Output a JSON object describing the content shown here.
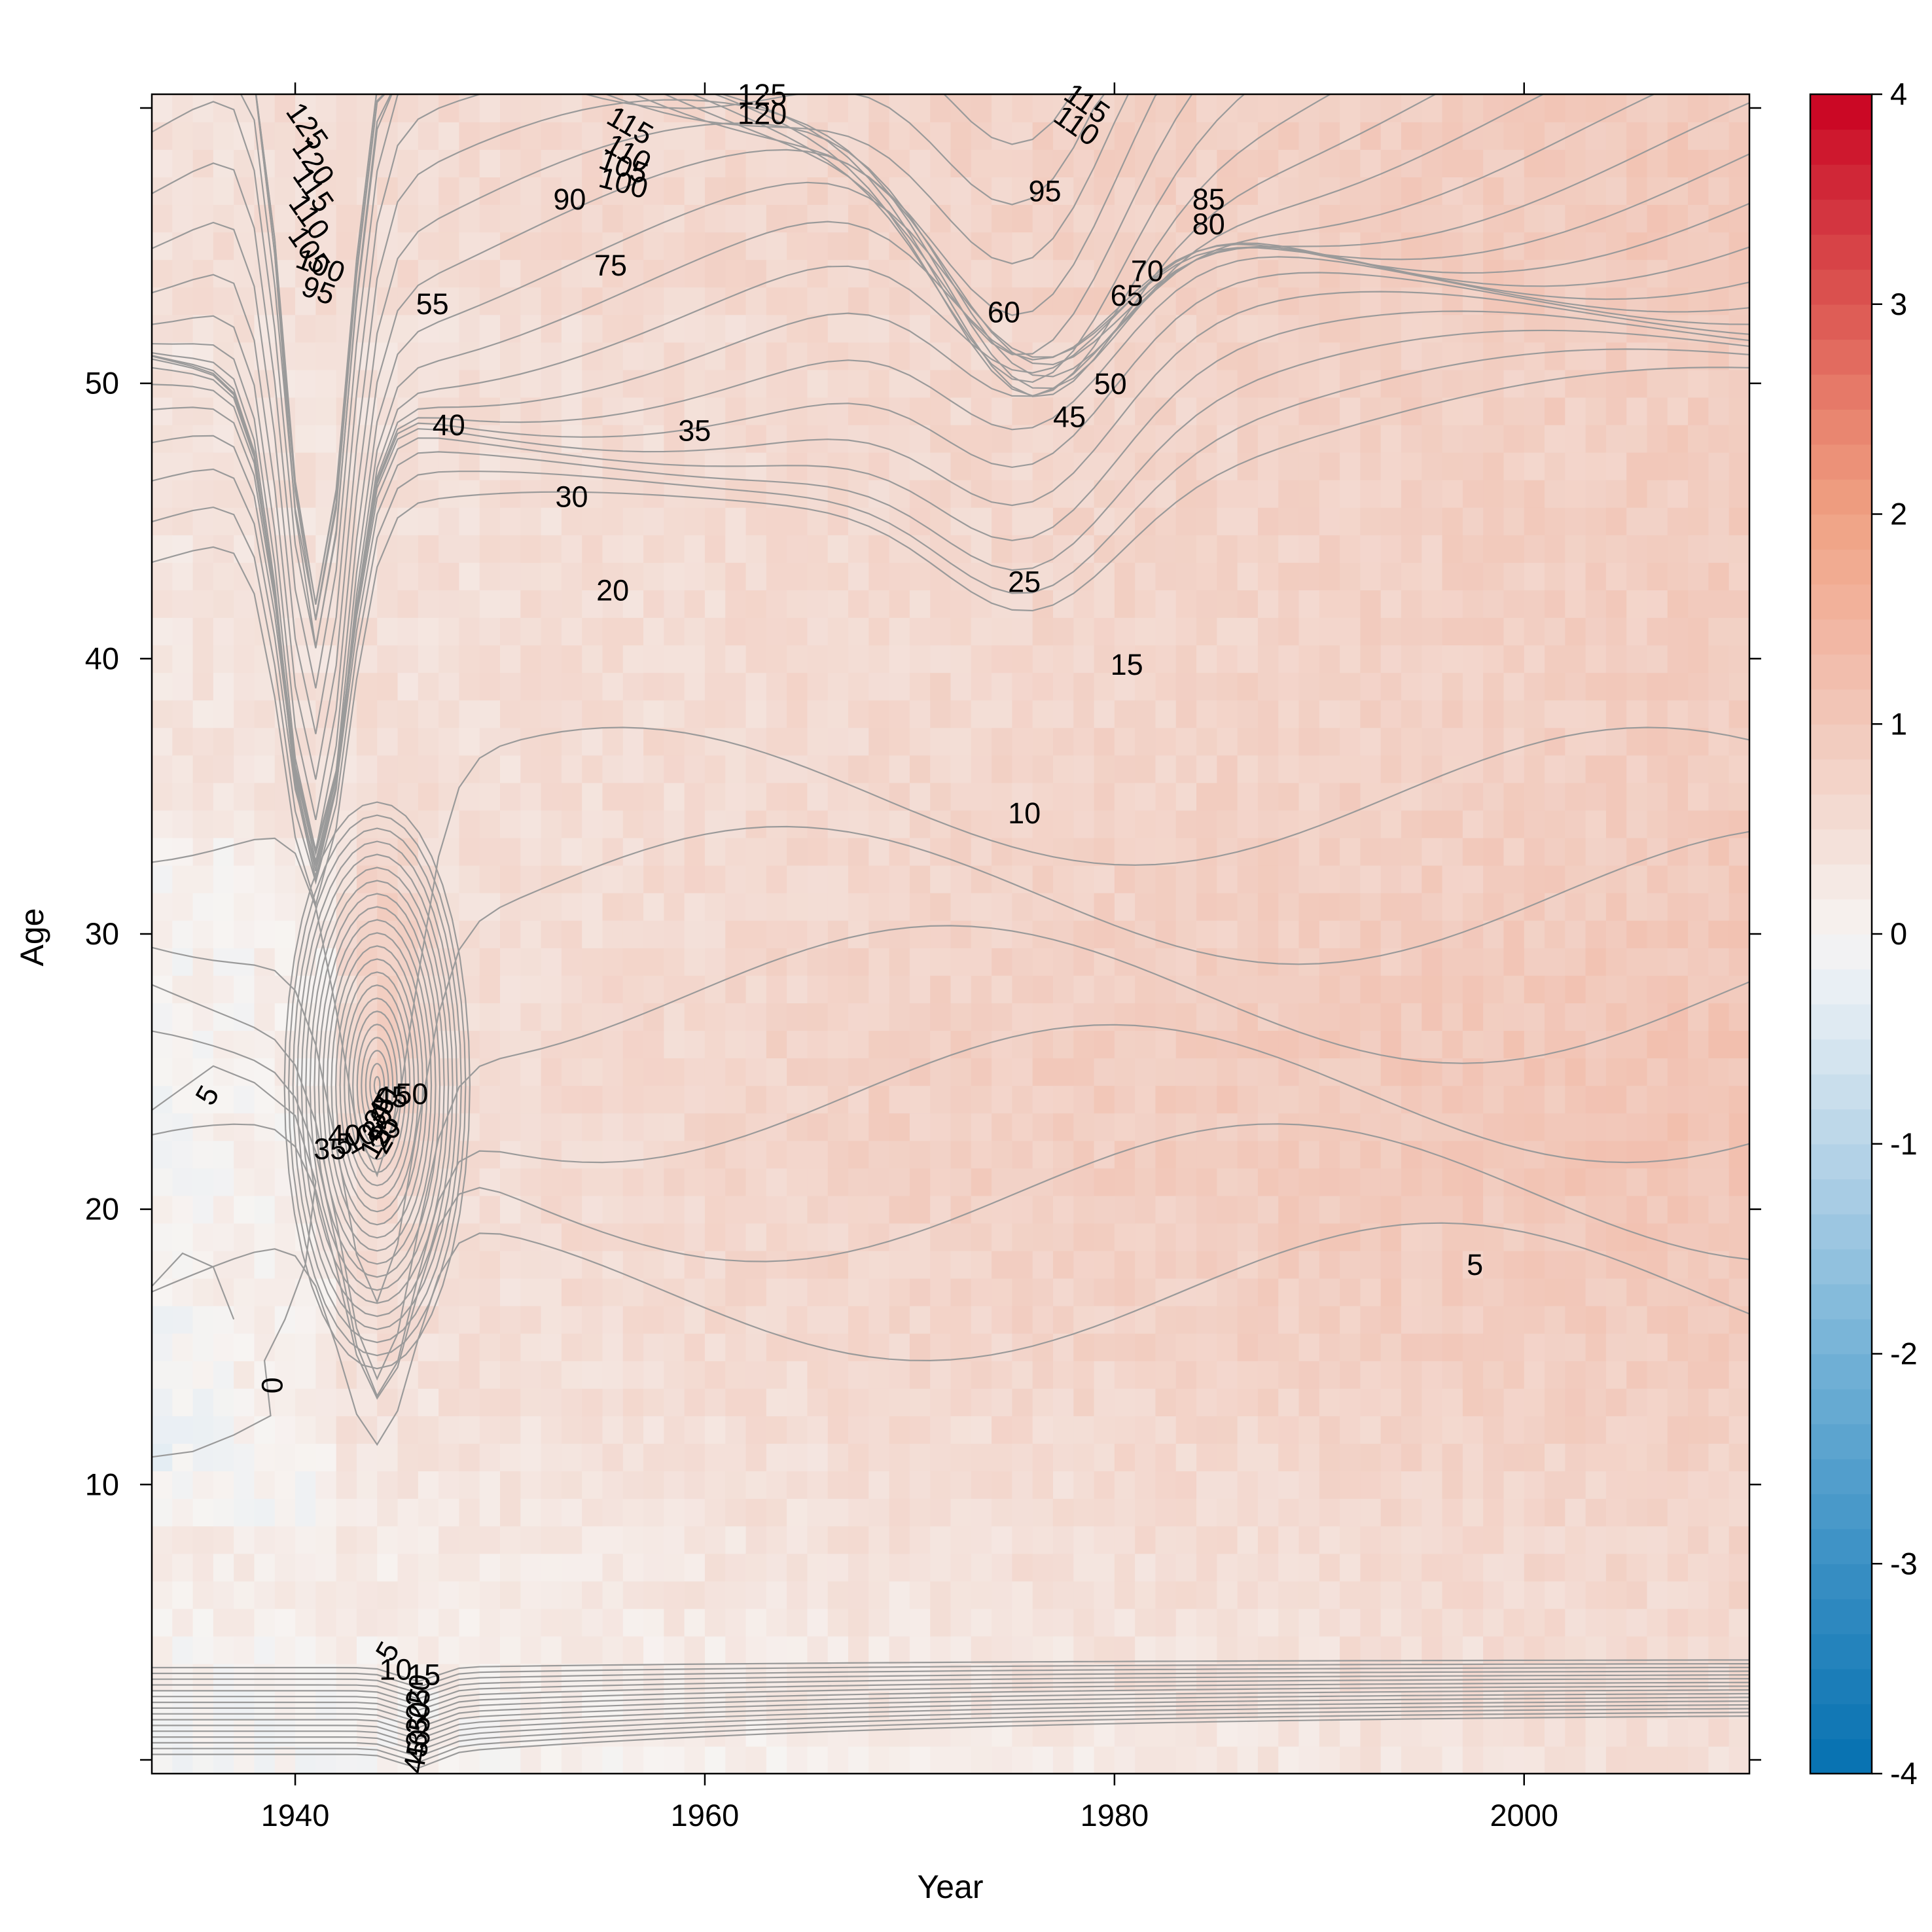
{
  "chart_data": {
    "type": "heatmap",
    "title": "",
    "xlabel": "Year",
    "ylabel": "Age",
    "xlim": [
      1933,
      2011
    ],
    "ylim": [
      -0.5,
      60.5
    ],
    "x_ticks": [
      1940,
      1960,
      1980,
      2000
    ],
    "y_ticks": [
      10,
      20,
      30,
      40,
      50
    ],
    "colorbar": {
      "min": -4,
      "max": 4,
      "ticks": [
        -4,
        -3,
        -2,
        -1,
        0,
        1,
        2,
        3,
        4
      ],
      "low_color": "#0570b0",
      "mid_color": "#f7f4f2",
      "high_color": "#ca0020"
    },
    "contour_color": "#9a9a9a",
    "contour_labels": [
      {
        "text": "125",
        "x": 1940.5,
        "y": 59.3,
        "angle": 55
      },
      {
        "text": "120",
        "x": 1940.8,
        "y": 58.0,
        "angle": 55
      },
      {
        "text": "115",
        "x": 1940.8,
        "y": 57.0,
        "angle": 55
      },
      {
        "text": "110",
        "x": 1940.6,
        "y": 56.0,
        "angle": 55
      },
      {
        "text": "105",
        "x": 1940.6,
        "y": 54.8,
        "angle": 55
      },
      {
        "text": "100",
        "x": 1941.2,
        "y": 54.2,
        "angle": 20
      },
      {
        "text": "95",
        "x": 1941.1,
        "y": 53.3,
        "angle": 20
      },
      {
        "text": "55",
        "x": 1946.7,
        "y": 52.8,
        "angle": 0
      },
      {
        "text": "40",
        "x": 1947.5,
        "y": 48.4,
        "angle": 0
      },
      {
        "text": "90",
        "x": 1953.4,
        "y": 56.6,
        "angle": 0
      },
      {
        "text": "75",
        "x": 1955.4,
        "y": 54.2,
        "angle": 0
      },
      {
        "text": "115",
        "x": 1956.3,
        "y": 59.3,
        "angle": 30
      },
      {
        "text": "110",
        "x": 1956.2,
        "y": 58.3,
        "angle": 30
      },
      {
        "text": "105",
        "x": 1956.0,
        "y": 57.8,
        "angle": 20
      },
      {
        "text": "100",
        "x": 1956.0,
        "y": 57.2,
        "angle": 15
      },
      {
        "text": "125",
        "x": 1962.8,
        "y": 60.4,
        "angle": 0
      },
      {
        "text": "120",
        "x": 1962.8,
        "y": 59.7,
        "angle": 0
      },
      {
        "text": "35",
        "x": 1959.5,
        "y": 48.2,
        "angle": 0
      },
      {
        "text": "30",
        "x": 1953.5,
        "y": 45.8,
        "angle": 0
      },
      {
        "text": "20",
        "x": 1955.5,
        "y": 42.4,
        "angle": 0
      },
      {
        "text": "115",
        "x": 1978.6,
        "y": 60.1,
        "angle": 35
      },
      {
        "text": "110",
        "x": 1978.1,
        "y": 59.3,
        "angle": 35
      },
      {
        "text": "95",
        "x": 1976.6,
        "y": 56.9,
        "angle": 0
      },
      {
        "text": "85",
        "x": 1984.6,
        "y": 56.6,
        "angle": 0
      },
      {
        "text": "80",
        "x": 1984.6,
        "y": 55.7,
        "angle": 0
      },
      {
        "text": "70",
        "x": 1981.6,
        "y": 54.0,
        "angle": 0
      },
      {
        "text": "65",
        "x": 1980.6,
        "y": 53.1,
        "angle": 0
      },
      {
        "text": "60",
        "x": 1974.6,
        "y": 52.5,
        "angle": 0
      },
      {
        "text": "50",
        "x": 1979.8,
        "y": 49.9,
        "angle": 0
      },
      {
        "text": "45",
        "x": 1977.8,
        "y": 48.7,
        "angle": 0
      },
      {
        "text": "25",
        "x": 1975.6,
        "y": 42.7,
        "angle": 0
      },
      {
        "text": "15",
        "x": 1980.6,
        "y": 39.7,
        "angle": 0
      },
      {
        "text": "10",
        "x": 1975.6,
        "y": 34.3,
        "angle": 0
      },
      {
        "text": "5",
        "x": 1997.6,
        "y": 17.9,
        "angle": 0
      },
      {
        "text": "5",
        "x": 1935.8,
        "y": 24.1,
        "angle": -60
      },
      {
        "text": "0",
        "x": 1939.0,
        "y": 13.6,
        "angle": -90
      },
      {
        "text": "5",
        "x": 1944.6,
        "y": 3.9,
        "angle": -60
      },
      {
        "text": "10",
        "x": 1944.9,
        "y": 3.2,
        "angle": 0
      },
      {
        "text": "15",
        "x": 1946.3,
        "y": 3.0,
        "angle": 0
      },
      {
        "text": "20",
        "x": 1946.1,
        "y": 2.5,
        "angle": -80
      },
      {
        "text": "25",
        "x": 1946.1,
        "y": 2.0,
        "angle": -80
      },
      {
        "text": "30",
        "x": 1946.1,
        "y": 1.5,
        "angle": -80
      },
      {
        "text": "35",
        "x": 1946.1,
        "y": 1.0,
        "angle": -80
      },
      {
        "text": "40",
        "x": 1946.1,
        "y": 0.5,
        "angle": -80
      },
      {
        "text": "45",
        "x": 1946.0,
        "y": 0.1,
        "angle": -80
      },
      {
        "text": "50",
        "x": 1945.7,
        "y": 24.1,
        "angle": 0
      },
      {
        "text": "45",
        "x": 1944.7,
        "y": 24.0,
        "angle": 0
      },
      {
        "text": "40",
        "x": 1944.4,
        "y": 23.8,
        "angle": -60
      },
      {
        "text": "35",
        "x": 1944.2,
        "y": 23.5,
        "angle": -60
      },
      {
        "text": "30",
        "x": 1944.1,
        "y": 23.1,
        "angle": -60
      },
      {
        "text": "25",
        "x": 1944.4,
        "y": 22.8,
        "angle": -60
      },
      {
        "text": "20",
        "x": 1944.5,
        "y": 22.6,
        "angle": -60
      },
      {
        "text": "15",
        "x": 1944.0,
        "y": 22.4,
        "angle": -60
      },
      {
        "text": "10",
        "x": 1943.2,
        "y": 22.5,
        "angle": -30
      },
      {
        "text": "5",
        "x": 1942.4,
        "y": 22.3,
        "angle": 0
      },
      {
        "text": "35",
        "x": 1941.7,
        "y": 22.1,
        "angle": 0
      },
      {
        "text": "40",
        "x": 1942.4,
        "y": 22.6,
        "angle": 0
      }
    ]
  }
}
